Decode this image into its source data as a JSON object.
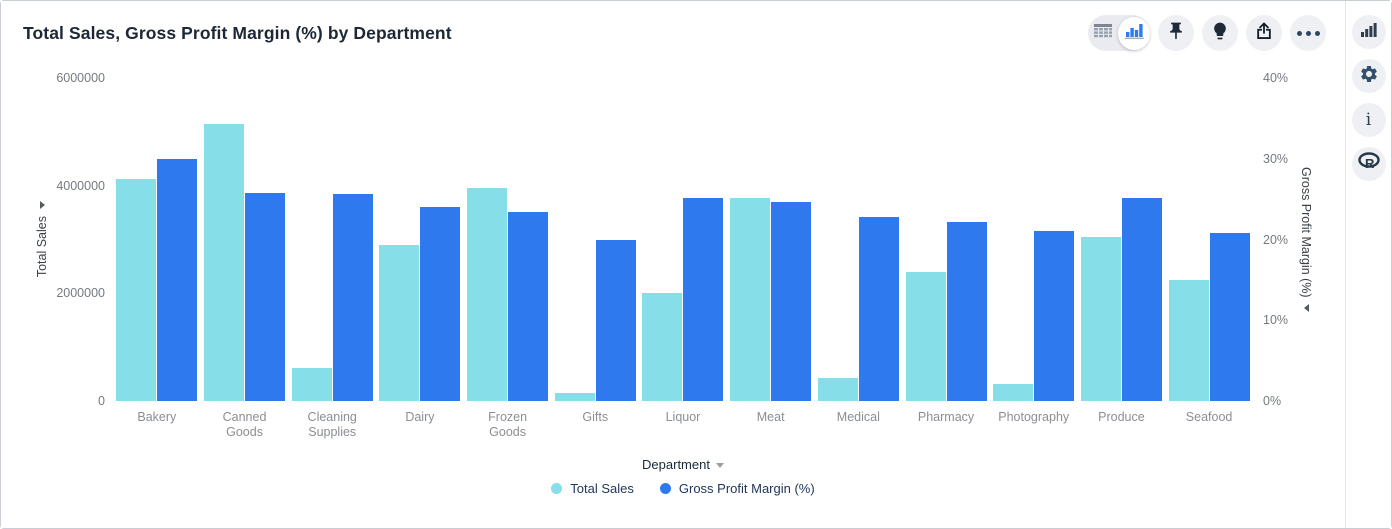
{
  "header": {
    "title": "Total Sales, Gross Profit Margin (%) by Department"
  },
  "toolbar": {
    "view_toggle": {
      "options": [
        "table",
        "chart"
      ],
      "active": "chart"
    },
    "buttons": [
      "pin",
      "insights",
      "share",
      "more-options"
    ]
  },
  "side_rail": {
    "buttons": [
      "chart-type",
      "settings",
      "info",
      "r-analytics"
    ]
  },
  "colors": {
    "total_sales": "#85DEE8",
    "gross_profit_margin": "#2E79EE",
    "accent_blue": "#2E7CF0"
  },
  "chart_data": {
    "type": "bar",
    "title": "Total Sales, Gross Profit Margin (%) by Department",
    "categories": [
      "Bakery",
      "Canned Goods",
      "Cleaning Supplies",
      "Dairy",
      "Frozen Goods",
      "Gifts",
      "Liquor",
      "Meat",
      "Medical",
      "Pharmacy",
      "Photography",
      "Produce",
      "Seafood"
    ],
    "series": [
      {
        "name": "Total Sales",
        "axis": "left",
        "color": "#85DEE8",
        "values": [
          4130000,
          5140000,
          620000,
          2900000,
          3960000,
          150000,
          2000000,
          3780000,
          430000,
          2400000,
          320000,
          3050000,
          2240000
        ]
      },
      {
        "name": "Gross Profit Margin (%)",
        "axis": "right",
        "color": "#2E79EE",
        "values": [
          30,
          25.7,
          25.6,
          24,
          23.4,
          20,
          25.2,
          24.6,
          22.8,
          22.2,
          21.1,
          25.1,
          20.8
        ]
      }
    ],
    "left_axis": {
      "label": "Total Sales",
      "min": 0,
      "max": 6000000,
      "ticks": [
        "0",
        "2000000",
        "4000000",
        "6000000"
      ]
    },
    "right_axis": {
      "label": "Gross Profit Margin (%)",
      "min": 0,
      "max": 40,
      "ticks": [
        "0%",
        "10%",
        "20%",
        "30%",
        "40%"
      ]
    },
    "xlabel": "Department",
    "legend": {
      "position": "bottom",
      "items": [
        "Total Sales",
        "Gross Profit Margin (%)"
      ]
    },
    "grid": false
  }
}
